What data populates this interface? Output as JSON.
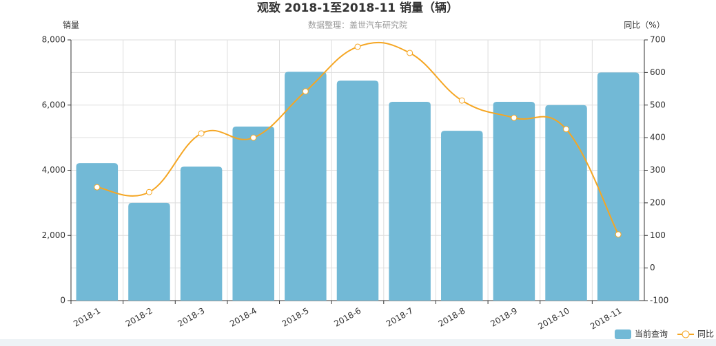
{
  "chart_data": {
    "type": "bar-line",
    "title": "观致 2018-1至2018-11 销量（辆）",
    "subtitle": "数据整理：盖世汽车研究院",
    "y_label": "销量",
    "y2_label": "同比（%）",
    "categories": [
      "2018-1",
      "2018-2",
      "2018-3",
      "2018-4",
      "2018-5",
      "2018-6",
      "2018-7",
      "2018-8",
      "2018-9",
      "2018-10",
      "2018-11"
    ],
    "series": [
      {
        "name": "当前查询",
        "type": "bar",
        "color": "#72b9d6",
        "values": [
          4220,
          3000,
          4110,
          5340,
          7020,
          6750,
          6100,
          5210,
          6100,
          6000,
          7000
        ]
      },
      {
        "name": "同比",
        "type": "line",
        "axis": "y2",
        "color": "#f5a623",
        "values": [
          248,
          233,
          413,
          400,
          542,
          679,
          660,
          514,
          461,
          426,
          103
        ]
      }
    ],
    "ylim": [
      0,
      8000
    ],
    "yticks": [
      0,
      {
        "value": 2000,
        "label": "2,000"
      },
      {
        "value": 4000,
        "label": "4,000"
      },
      {
        "value": 6000,
        "label": "6,000"
      },
      {
        "value": 8000,
        "label": "8,000"
      }
    ],
    "y2lim": [
      -100,
      700
    ],
    "y2ticks": [
      -100,
      0,
      100,
      200,
      300,
      400,
      500,
      600,
      700
    ],
    "grid": true,
    "legend": "bottom-right"
  }
}
